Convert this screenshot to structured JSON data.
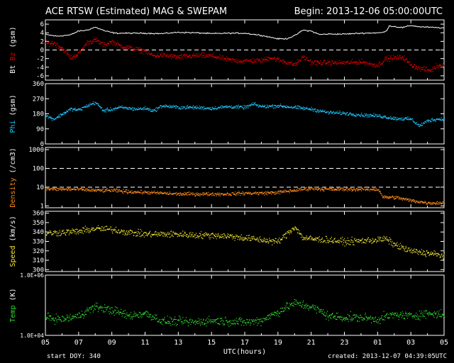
{
  "header": {
    "title": "ACE RTSW (Estimated) MAG & SWEPAM",
    "begin": "Begin: 2013-12-06 05:00:00UTC"
  },
  "footer": {
    "start_doy": "start DOY: 340",
    "created": "created: 2013-12-07 04:39:05UTC"
  },
  "colors": {
    "bt": "#ffffff",
    "bz": "#e00000",
    "phi": "#1ec8ff",
    "density": "#ff8c1a",
    "speed": "#f0e630",
    "temp": "#2fdc2f"
  },
  "chart_data": {
    "type": "scatter",
    "xlabel": "UTC(hours)",
    "x_ticks": [
      "05",
      "07",
      "09",
      "11",
      "13",
      "15",
      "17",
      "19",
      "21",
      "23",
      "01",
      "03",
      "05"
    ],
    "xlim_hours": [
      0,
      24
    ],
    "panels": [
      {
        "id": "mag",
        "ylabel_parts": [
          "Bt",
          "Bz",
          "(gsm)"
        ],
        "scale": "linear",
        "ylim": [
          -7,
          7
        ],
        "ticks": [
          "6",
          "4",
          "2",
          "0",
          "-2",
          "-4",
          "-6"
        ],
        "tick_values": [
          6,
          4,
          2,
          0,
          -2,
          -4,
          -6
        ],
        "dashed": [
          0
        ],
        "series": [
          {
            "name": "Bt",
            "color_key": "bt",
            "style": "line",
            "points": [
              [
                0,
                3.6
              ],
              [
                0.7,
                3.2
              ],
              [
                1.5,
                3.5
              ],
              [
                2,
                4.4
              ],
              [
                2.5,
                4.6
              ],
              [
                3,
                5.3
              ],
              [
                3.6,
                4.4
              ],
              [
                4.2,
                3.9
              ],
              [
                5,
                3.9
              ],
              [
                6,
                3.9
              ],
              [
                7,
                3.8
              ],
              [
                8,
                4.1
              ],
              [
                9,
                4
              ],
              [
                10,
                3.8
              ],
              [
                11,
                3.9
              ],
              [
                12,
                3.9
              ],
              [
                13,
                3.4
              ],
              [
                14,
                2.6
              ],
              [
                14.5,
                2.6
              ],
              [
                15,
                3.3
              ],
              [
                15.5,
                4.6
              ],
              [
                16,
                4.4
              ],
              [
                16.5,
                3.6
              ],
              [
                17,
                3.7
              ],
              [
                18,
                3.7
              ],
              [
                19,
                3.9
              ],
              [
                20.2,
                4
              ],
              [
                20.5,
                4.3
              ],
              [
                20.7,
                5.6
              ],
              [
                21.5,
                5.2
              ],
              [
                22,
                5.7
              ],
              [
                22.5,
                5.4
              ],
              [
                23,
                5.3
              ],
              [
                24,
                5.1
              ]
            ]
          },
          {
            "name": "Bz",
            "color_key": "bz",
            "style": "dots",
            "noise": 0.5,
            "points": [
              [
                0,
                1.6
              ],
              [
                0.5,
                1.7
              ],
              [
                1,
                0.5
              ],
              [
                1.5,
                -1.8
              ],
              [
                2,
                -0.7
              ],
              [
                2.5,
                1.8
              ],
              [
                3,
                2.4
              ],
              [
                3.5,
                1.2
              ],
              [
                4,
                2
              ],
              [
                4.5,
                1
              ],
              [
                5,
                0.6
              ],
              [
                6,
                -0.2
              ],
              [
                6.5,
                -1.3
              ],
              [
                7,
                -1.1
              ],
              [
                8,
                -1.6
              ],
              [
                9,
                -1.2
              ],
              [
                10,
                -1.3
              ],
              [
                11,
                -2.2
              ],
              [
                11.5,
                -2.4
              ],
              [
                12,
                -2.5
              ],
              [
                12.5,
                -2.4
              ],
              [
                13,
                -2.4
              ],
              [
                13.5,
                -1.6
              ],
              [
                14,
                -2.2
              ],
              [
                15,
                -3.3
              ],
              [
                15.5,
                -1.5
              ],
              [
                16,
                -2.8
              ],
              [
                17,
                -2.9
              ],
              [
                18,
                -2.9
              ],
              [
                19,
                -2.7
              ],
              [
                20,
                -3.5
              ],
              [
                20.5,
                -1.9
              ],
              [
                21.5,
                -1.6
              ],
              [
                22,
                -3.4
              ],
              [
                22.5,
                -4.2
              ],
              [
                23.2,
                -4.7
              ],
              [
                23.6,
                -3.5
              ],
              [
                24,
                -3.4
              ]
            ]
          }
        ]
      },
      {
        "id": "phi",
        "ylabel_parts": [
          "Phi",
          "(gsm)"
        ],
        "scale": "linear",
        "ylim": [
          0,
          360
        ],
        "ticks": [
          "360",
          "270",
          "180",
          "90",
          "0"
        ],
        "tick_values": [
          360,
          270,
          180,
          90,
          0
        ],
        "dashed": [],
        "series": [
          {
            "name": "Phi",
            "color_key": "phi",
            "style": "dots",
            "noise": 9,
            "points": [
              [
                0,
                170
              ],
              [
                0.5,
                150
              ],
              [
                1,
                180
              ],
              [
                1.5,
                210
              ],
              [
                2,
                205
              ],
              [
                2.5,
                230
              ],
              [
                3,
                250
              ],
              [
                3.5,
                200
              ],
              [
                4,
                210
              ],
              [
                4.5,
                220
              ],
              [
                5.5,
                210
              ],
              [
                6,
                215
              ],
              [
                6.5,
                200
              ],
              [
                7,
                230
              ],
              [
                8,
                220
              ],
              [
                9,
                220
              ],
              [
                10,
                215
              ],
              [
                11,
                225
              ],
              [
                12,
                220
              ],
              [
                12.5,
                240
              ],
              [
                13,
                225
              ],
              [
                14,
                230
              ],
              [
                15,
                220
              ],
              [
                16,
                210
              ],
              [
                17,
                190
              ],
              [
                18,
                185
              ],
              [
                19,
                175
              ],
              [
                20,
                170
              ],
              [
                21,
                155
              ],
              [
                22,
                150
              ],
              [
                22.5,
                110
              ],
              [
                23,
                140
              ],
              [
                23.5,
                150
              ],
              [
                24,
                150
              ]
            ]
          }
        ]
      },
      {
        "id": "density",
        "ylabel_parts": [
          "Density",
          "(/cm3)"
        ],
        "scale": "log",
        "ylim": [
          0.8,
          1300
        ],
        "ticks": [
          "1000",
          "100",
          "10",
          "1"
        ],
        "tick_values": [
          1000,
          100,
          10,
          1
        ],
        "dashed": [
          100,
          10
        ],
        "series": [
          {
            "name": "Density",
            "color_key": "density",
            "style": "dots",
            "noise": 0.08,
            "points": [
              [
                0,
                8.5
              ],
              [
                1,
                8
              ],
              [
                2,
                8
              ],
              [
                3,
                7
              ],
              [
                4,
                7
              ],
              [
                5,
                6
              ],
              [
                6,
                5.5
              ],
              [
                7,
                5
              ],
              [
                8,
                4.5
              ],
              [
                9,
                4.5
              ],
              [
                10,
                4.5
              ],
              [
                11,
                4.5
              ],
              [
                12,
                5
              ],
              [
                13,
                5
              ],
              [
                14,
                5.5
              ],
              [
                15,
                7
              ],
              [
                16,
                9
              ],
              [
                17,
                8
              ],
              [
                18,
                8
              ],
              [
                19,
                8
              ],
              [
                20,
                8
              ],
              [
                20.3,
                3
              ],
              [
                21,
                3
              ],
              [
                22,
                2
              ],
              [
                23,
                1.5
              ],
              [
                24,
                1.5
              ]
            ]
          }
        ]
      },
      {
        "id": "speed",
        "ylabel_parts": [
          "Speed",
          "(km/s)"
        ],
        "scale": "linear",
        "ylim": [
          298,
          362
        ],
        "ticks": [
          "360",
          "350",
          "340",
          "330",
          "320",
          "310",
          "300"
        ],
        "tick_values": [
          360,
          350,
          340,
          330,
          320,
          310,
          300
        ],
        "dashed": [],
        "series": [
          {
            "name": "Speed",
            "color_key": "speed",
            "style": "dots",
            "noise": 3,
            "points": [
              [
                0,
                339
              ],
              [
                1,
                340
              ],
              [
                2,
                341
              ],
              [
                3,
                344
              ],
              [
                4,
                343
              ],
              [
                5,
                340
              ],
              [
                6,
                338
              ],
              [
                7,
                338
              ],
              [
                8,
                338
              ],
              [
                9,
                337
              ],
              [
                10,
                337
              ],
              [
                11,
                336
              ],
              [
                12,
                334
              ],
              [
                12.5,
                333
              ],
              [
                13,
                332
              ],
              [
                14,
                330
              ],
              [
                14.5,
                338
              ],
              [
                15,
                346
              ],
              [
                15.5,
                334
              ],
              [
                16,
                333
              ],
              [
                17,
                332
              ],
              [
                18,
                330
              ],
              [
                19,
                331
              ],
              [
                20,
                332
              ],
              [
                20.5,
                333
              ],
              [
                21,
                327
              ],
              [
                22,
                320
              ],
              [
                23,
                318
              ],
              [
                24,
                315
              ]
            ]
          }
        ]
      },
      {
        "id": "temp",
        "ylabel_parts": [
          "Temp",
          "(K)"
        ],
        "scale": "log",
        "ylim": [
          10000,
          1000000
        ],
        "ticks": [
          "1.0E+06",
          "1.0E+04"
        ],
        "tick_values": [
          1000000,
          10000
        ],
        "dashed": [],
        "series": [
          {
            "name": "Temp",
            "color_key": "temp",
            "style": "dots",
            "noise": 0.12,
            "points": [
              [
                0,
                40000
              ],
              [
                1,
                35000
              ],
              [
                2,
                45000
              ],
              [
                3,
                90000
              ],
              [
                4,
                70000
              ],
              [
                5,
                45000
              ],
              [
                6,
                55000
              ],
              [
                7,
                30000
              ],
              [
                8,
                30000
              ],
              [
                9,
                28000
              ],
              [
                10,
                32000
              ],
              [
                11,
                30000
              ],
              [
                12,
                28000
              ],
              [
                13,
                32000
              ],
              [
                14,
                60000
              ],
              [
                15,
                120000
              ],
              [
                16,
                90000
              ],
              [
                17,
                45000
              ],
              [
                18,
                40000
              ],
              [
                19,
                40000
              ],
              [
                20,
                35000
              ],
              [
                21,
                50000
              ],
              [
                22,
                45000
              ],
              [
                23,
                55000
              ],
              [
                24,
                50000
              ]
            ]
          }
        ]
      }
    ]
  }
}
